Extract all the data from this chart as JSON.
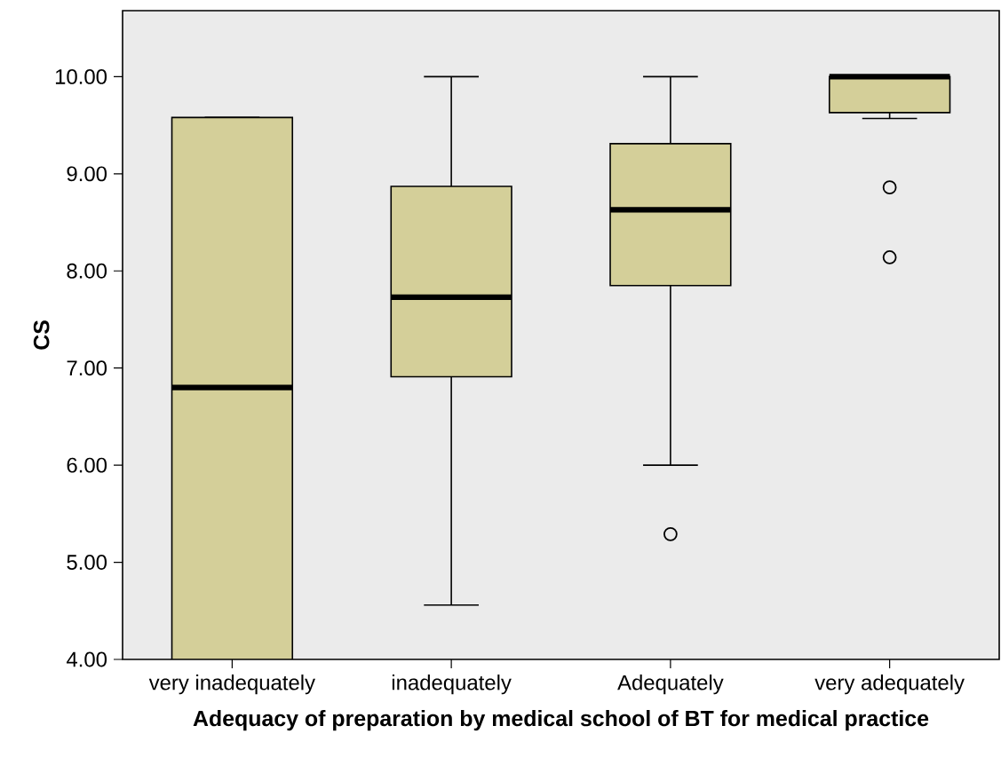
{
  "chart_data": {
    "type": "box",
    "xlabel": "Adequacy of preparation by medical school of BT for medical practice",
    "ylabel": "CS",
    "categories": [
      "very inadequately",
      "inadequately",
      "Adequately",
      "very adequately"
    ],
    "series": [
      {
        "color": "#d4cf99",
        "boxes": [
          {
            "low": 4.0,
            "q1": 4.0,
            "median": 6.8,
            "q3": 9.58,
            "high": 9.58
          },
          {
            "low": 4.56,
            "q1": 6.91,
            "median": 7.73,
            "q3": 8.87,
            "high": 10.0
          },
          {
            "low": 6.0,
            "q1": 7.85,
            "median": 8.63,
            "q3": 9.31,
            "high": 10.0,
            "outliers": [
              5.29
            ]
          },
          {
            "low": 9.57,
            "q1": 9.63,
            "median": 10.0,
            "q3": 10.0,
            "high": 10.0,
            "outliers": [
              8.86,
              8.14
            ]
          }
        ]
      }
    ],
    "ylim": [
      4,
      10.68
    ],
    "yticks": [
      {
        "value": 4,
        "label": "4.00"
      },
      {
        "value": 5,
        "label": "5.00"
      },
      {
        "value": 6,
        "label": "6.00"
      },
      {
        "value": 7,
        "label": "7.00"
      },
      {
        "value": 8,
        "label": "8.00"
      },
      {
        "value": 9,
        "label": "9.00"
      },
      {
        "value": 10,
        "label": "10.00"
      }
    ]
  }
}
